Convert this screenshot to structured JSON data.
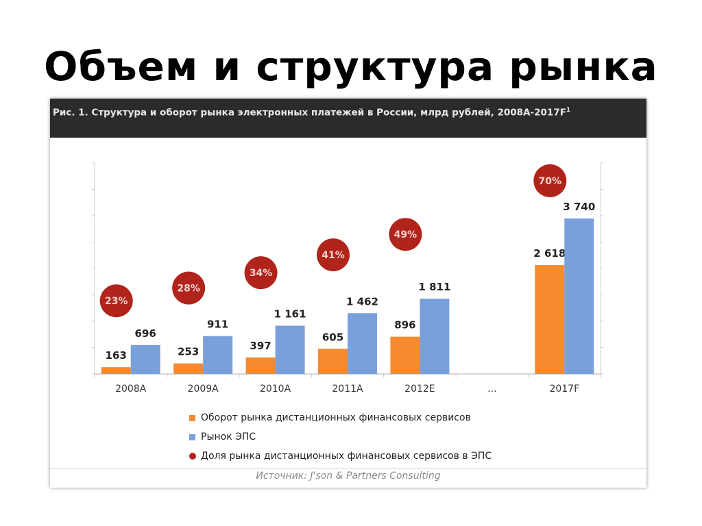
{
  "slide": {
    "title": "Объем и структура рынка"
  },
  "figure": {
    "caption_text": "Рис. 1. Структура  и оборот рынка электронных платежей в России, млрд рублей, 2008А-2017F",
    "caption_sup": "1",
    "source": "Источник: J'son & Partners Consulting"
  },
  "colors": {
    "orange": "#f58a2f",
    "blue": "#7aa0dc",
    "red_circle": "#b0241b",
    "header_bg": "#2b2b2b"
  },
  "chart_data": {
    "type": "bar",
    "categories": [
      "2008A",
      "2009A",
      "2010A",
      "2011A",
      "2012E",
      "...",
      "2017F"
    ],
    "series": [
      {
        "name": "Оборот рынка дистанционных финансовых сервисов",
        "color": "#f58a2f",
        "values": [
          163,
          253,
          397,
          605,
          896,
          null,
          2618
        ],
        "labels": [
          "163",
          "253",
          "397",
          "605",
          "896",
          "",
          "2 618"
        ]
      },
      {
        "name": "Рынок ЭПС",
        "color": "#7aa0dc",
        "values": [
          696,
          911,
          1161,
          1462,
          1811,
          null,
          3740
        ],
        "labels": [
          "696",
          "911",
          "1 161",
          "1 462",
          "1 811",
          "",
          "3 740"
        ]
      }
    ],
    "share_series": {
      "name": "Доля рынка дистанционных финансовых сервисов в ЭПС",
      "color": "#b0241b",
      "values": [
        23,
        28,
        34,
        41,
        49,
        null,
        70
      ],
      "labels": [
        "23%",
        "28%",
        "34%",
        "41%",
        "49%",
        "",
        "70%"
      ]
    },
    "ylim": [
      0,
      4000
    ],
    "share_ylim": [
      0,
      80
    ],
    "grid": false,
    "legend_position": "bottom"
  }
}
